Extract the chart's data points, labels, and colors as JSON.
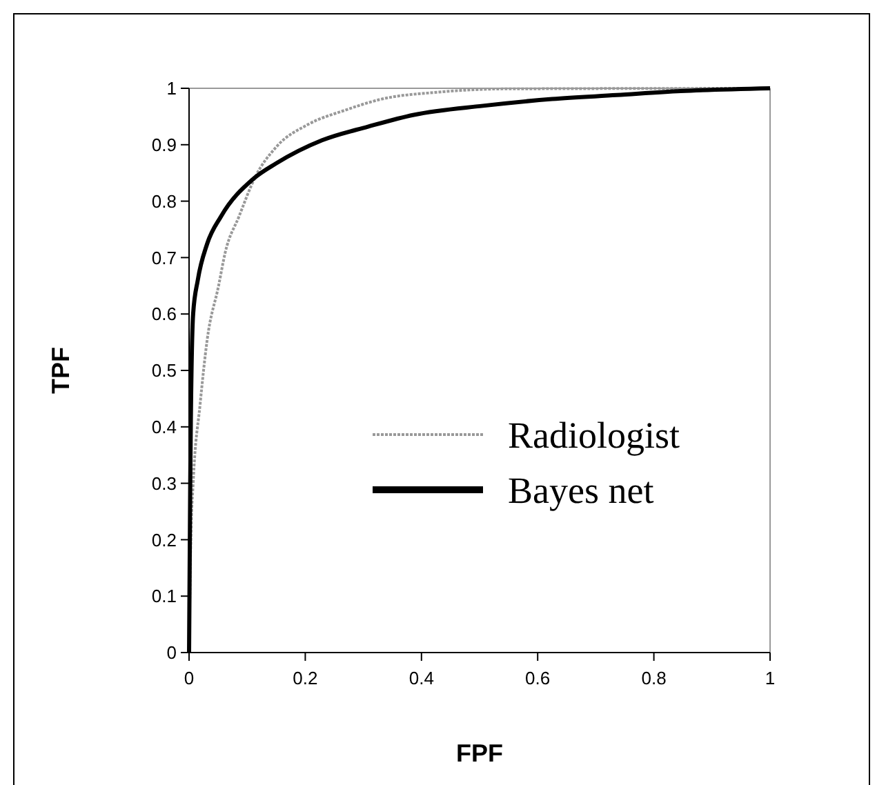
{
  "chart_data": {
    "type": "line",
    "xlabel": "FPF",
    "ylabel": "TPF",
    "xlim": [
      0,
      1
    ],
    "ylim": [
      0,
      1
    ],
    "xticks": [
      0,
      0.2,
      0.4,
      0.6,
      0.8,
      1
    ],
    "yticks": [
      0,
      0.1,
      0.2,
      0.3,
      0.4,
      0.5,
      0.6,
      0.7,
      0.8,
      0.9,
      1
    ],
    "grid": false,
    "legend": "center right",
    "series": [
      {
        "name": "Radiologist",
        "color": "#999999",
        "line_style": "dotted",
        "x": [
          0,
          0.003,
          0.007,
          0.019,
          0.031,
          0.051,
          0.062,
          0.086,
          0.114,
          0.15,
          0.205,
          0.268,
          0.332,
          0.427,
          0.546,
          1
        ],
        "values": [
          0,
          0.2,
          0.3,
          0.44,
          0.553,
          0.651,
          0.708,
          0.773,
          0.843,
          0.896,
          0.936,
          0.961,
          0.981,
          0.993,
          0.999,
          1
        ]
      },
      {
        "name": "Bayes net",
        "color": "#000000",
        "line_style": "solid",
        "x": [
          0,
          0.002,
          0.003,
          0.007,
          0.015,
          0.031,
          0.055,
          0.11,
          0.15,
          0.229,
          0.308,
          0.387,
          0.506,
          0.625,
          0.736,
          0.846,
          1
        ],
        "values": [
          0,
          0.3,
          0.407,
          0.6,
          0.66,
          0.724,
          0.773,
          0.839,
          0.867,
          0.908,
          0.932,
          0.953,
          0.969,
          0.981,
          0.988,
          0.995,
          1
        ]
      }
    ]
  }
}
